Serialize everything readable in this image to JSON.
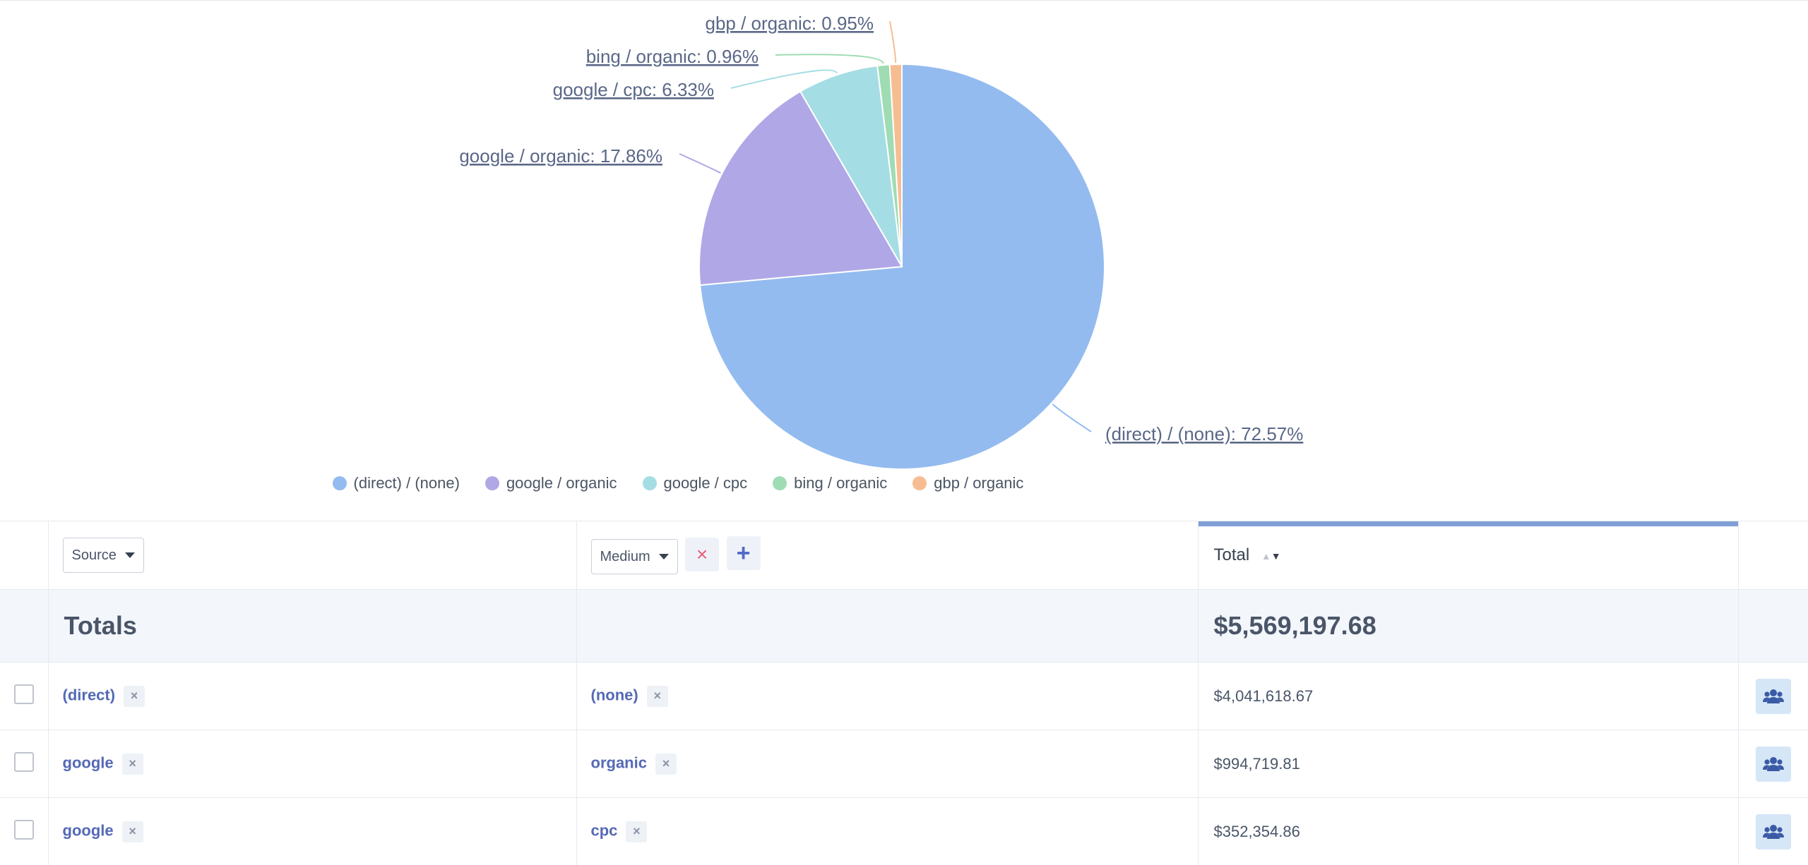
{
  "chart_data": {
    "type": "pie",
    "slices": [
      {
        "name": "(direct) / (none)",
        "value": 72.57,
        "label": "(direct) / (none): 72.57%",
        "color": "#93bbef"
      },
      {
        "name": "google / organic",
        "value": 17.86,
        "label": "google / organic: 17.86%",
        "color": "#b0a7e6"
      },
      {
        "name": "google / cpc",
        "value": 6.33,
        "label": "google / cpc: 6.33%",
        "color": "#a5dde4"
      },
      {
        "name": "bing / organic",
        "value": 0.96,
        "label": "bing / organic: 0.96%",
        "color": "#9fdcb4"
      },
      {
        "name": "gbp / organic",
        "value": 0.95,
        "label": "gbp / organic: 0.95%",
        "color": "#f7bd92"
      }
    ],
    "legend": [
      "(direct) / (none)",
      "google / organic",
      "google / cpc",
      "bing / organic",
      "gbp / organic"
    ],
    "legend_position": "bottom"
  },
  "table": {
    "header": {
      "source_label": "Source",
      "medium_label": "Medium",
      "remove_icon": "×",
      "add_icon": "+",
      "total_label": "Total",
      "sort_up": "▲",
      "sort_down": "▼"
    },
    "totals": {
      "label": "Totals",
      "value": "$5,569,197.68"
    },
    "rows": [
      {
        "source": "(direct)",
        "medium": "(none)",
        "total": "$4,041,618.67"
      },
      {
        "source": "google",
        "medium": "organic",
        "total": "$994,719.81"
      },
      {
        "source": "google",
        "medium": "cpc",
        "total": "$352,354.86"
      }
    ],
    "chip_remove": "×",
    "row_action_icon": "users-icon"
  }
}
